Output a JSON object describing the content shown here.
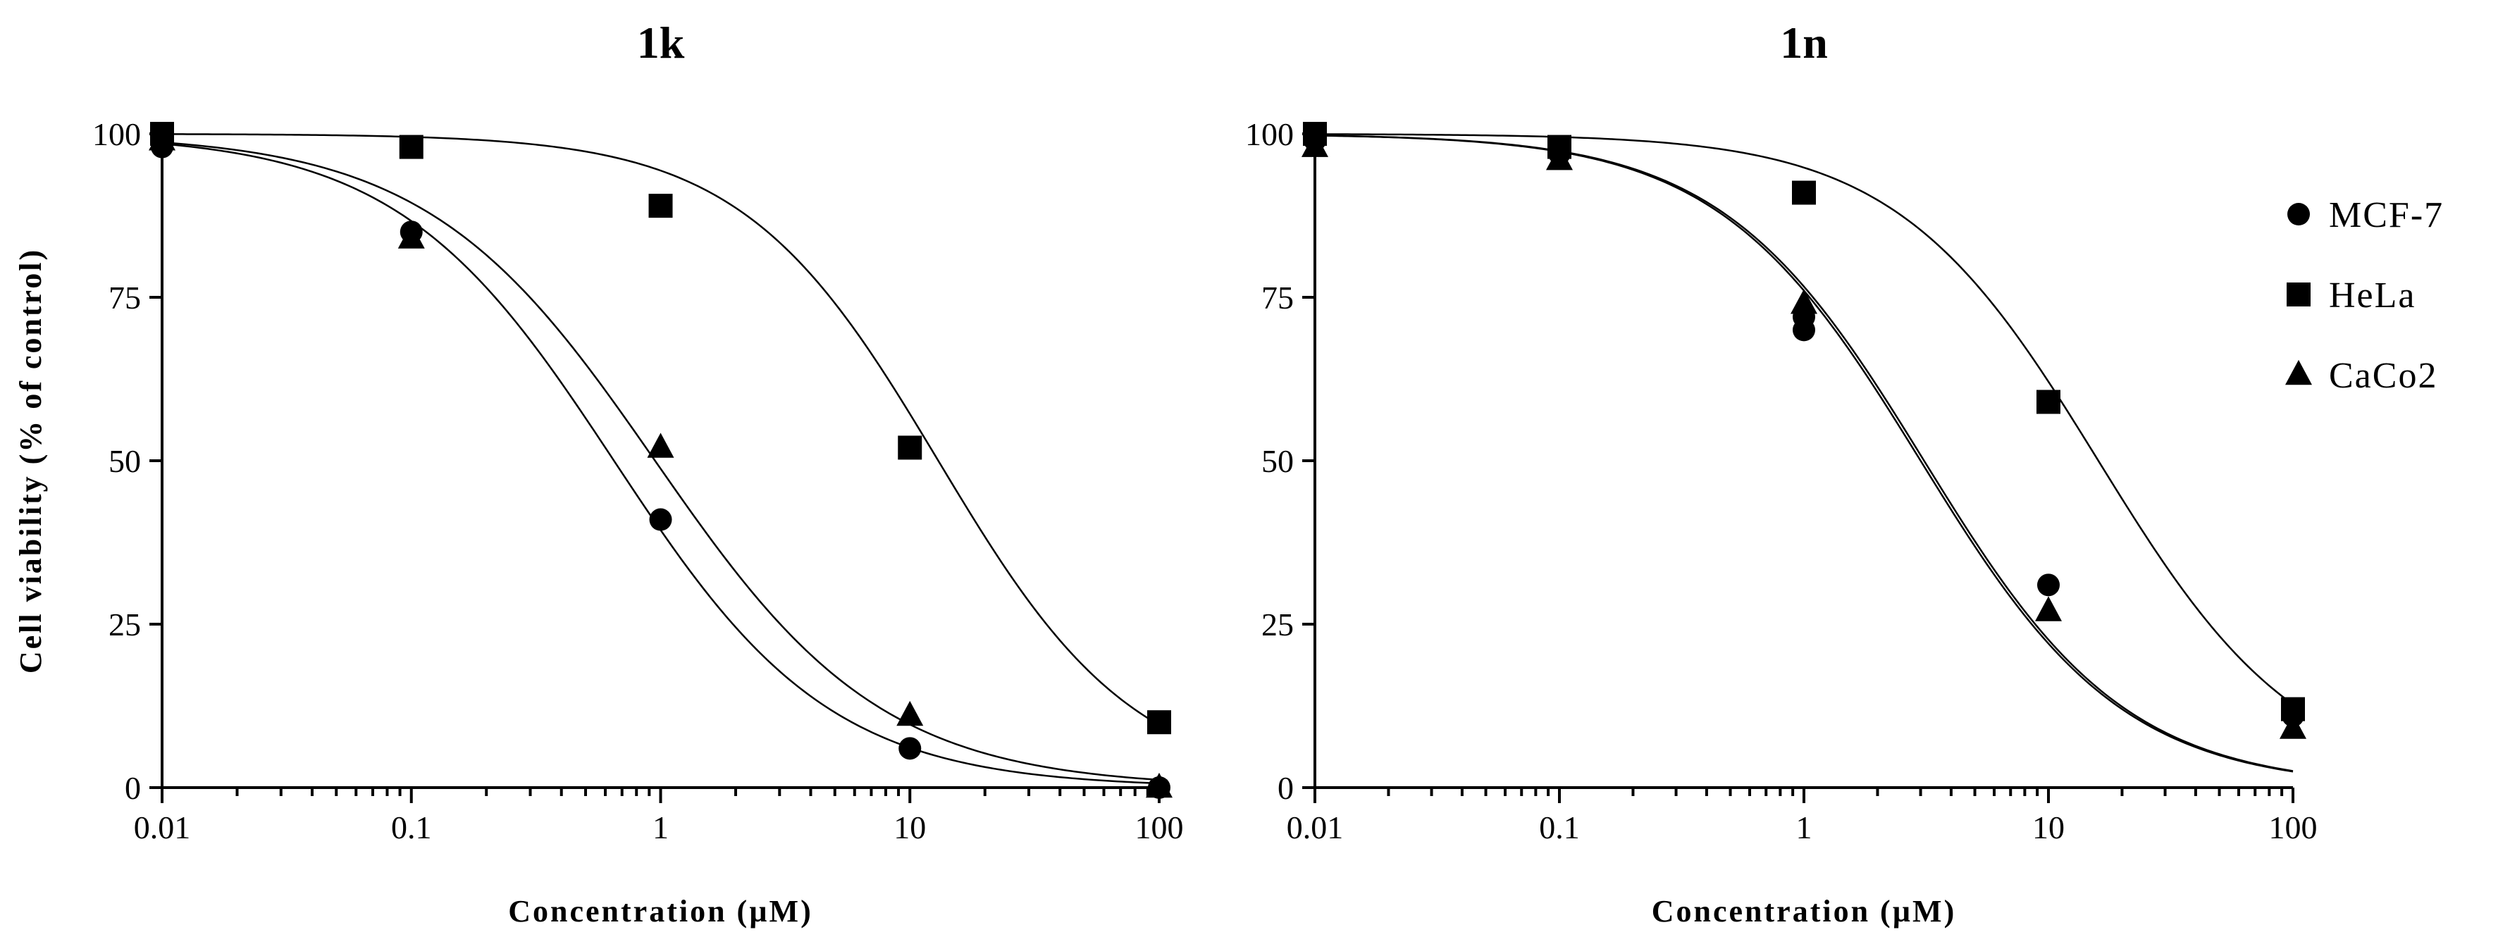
{
  "chart_data": [
    {
      "type": "scatter",
      "title": "1k",
      "xlabel": "Concentration (µM)",
      "ylabel": "Cell viability (% of control)",
      "xscale": "log",
      "xlim": [
        0.01,
        100
      ],
      "ylim": [
        0,
        100
      ],
      "xticks": [
        0.01,
        0.1,
        1,
        10,
        100
      ],
      "xtick_labels": [
        "0.01",
        "0.1",
        "1",
        "10",
        "100"
      ],
      "yticks": [
        0,
        25,
        50,
        75,
        100
      ],
      "series": [
        {
          "name": "MCF-7",
          "marker": "circle",
          "x": [
            0.01,
            0.1,
            1,
            10,
            100
          ],
          "values": [
            98,
            85,
            41,
            6,
            0
          ],
          "ic50": 0.65,
          "hill": 1.0
        },
        {
          "name": "HeLa",
          "marker": "square",
          "x": [
            0.01,
            0.1,
            1,
            10,
            100
          ],
          "values": [
            100,
            98,
            89,
            52,
            10
          ],
          "ic50": 13,
          "hill": 1.1
        },
        {
          "name": "CaCo2",
          "marker": "triangle",
          "x": [
            0.01,
            0.1,
            1,
            10,
            100
          ],
          "values": [
            99,
            84,
            52,
            11,
            0
          ],
          "ic50": 0.95,
          "hill": 0.95
        }
      ]
    },
    {
      "type": "scatter",
      "title": "1n",
      "xlabel": "Concentration (µM)",
      "ylabel": "",
      "xscale": "log",
      "xlim": [
        0.01,
        100
      ],
      "ylim": [
        0,
        100
      ],
      "xticks": [
        0.01,
        0.1,
        1,
        10,
        100
      ],
      "xtick_labels": [
        "0.01",
        "0.1",
        "1",
        "10",
        "100"
      ],
      "yticks": [
        0,
        25,
        50,
        75,
        100
      ],
      "legend": {
        "position": "top-right"
      },
      "series": [
        {
          "name": "MCF-7",
          "marker": "circle",
          "x": [
            0.01,
            0.1,
            1,
            1,
            10,
            100
          ],
          "values": [
            99,
            97,
            70,
            72,
            31,
            11
          ],
          "ic50": 3.0,
          "hill": 1.05
        },
        {
          "name": "HeLa",
          "marker": "square",
          "x": [
            0.01,
            0.1,
            1,
            10,
            100
          ],
          "values": [
            100,
            98,
            91,
            59,
            12
          ],
          "ic50": 16,
          "hill": 1.05
        },
        {
          "name": "CaCo2",
          "marker": "triangle",
          "x": [
            0.01,
            0.1,
            1,
            10,
            100
          ],
          "values": [
            98,
            96,
            74,
            27,
            9
          ],
          "ic50": 3.1,
          "hill": 1.05
        }
      ]
    }
  ]
}
